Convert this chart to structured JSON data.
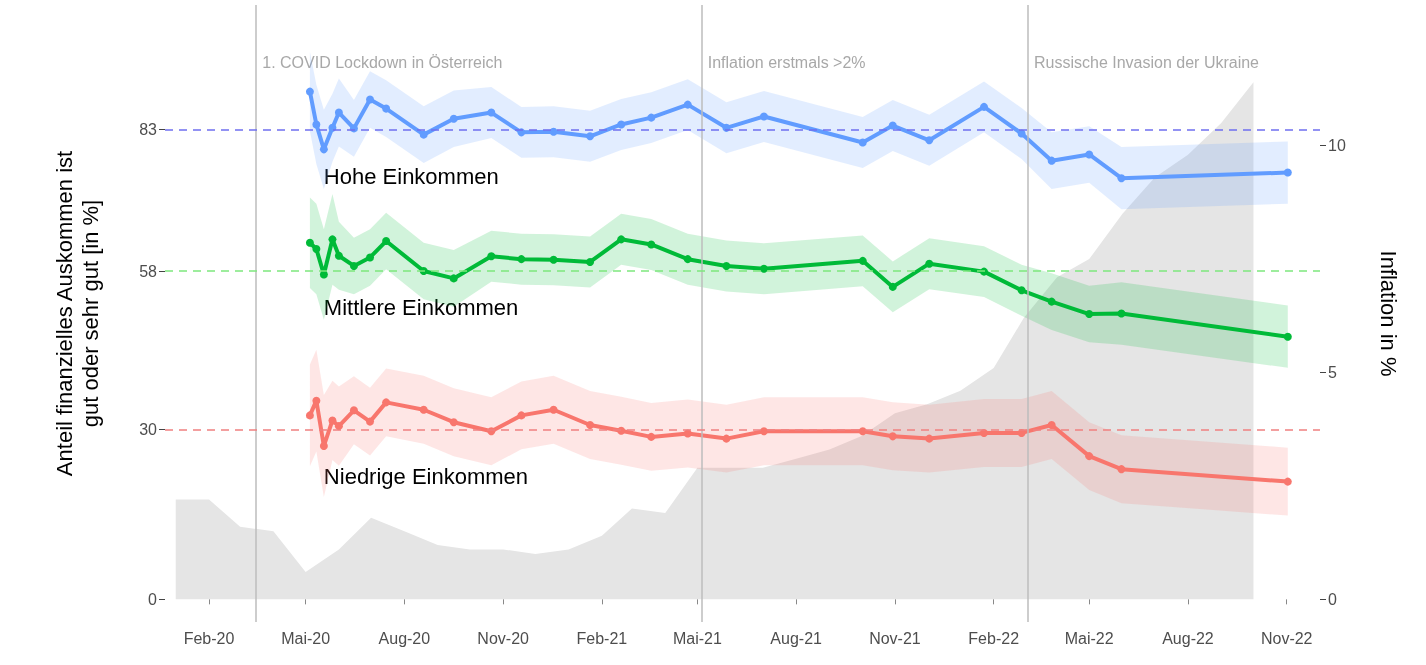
{
  "chart_data": {
    "type": "line",
    "ylabel": "Anteil finanzielles Auskommen ist\ngut oder sehr gut [in %]",
    "y2label": "Inflation in %",
    "x": [
      "2020-05-05",
      "2020-05-11",
      "2020-05-18",
      "2020-05-26",
      "2020-06-01",
      "2020-06-15",
      "2020-06-30",
      "2020-07-15",
      "2020-08-19",
      "2020-09-16",
      "2020-10-21",
      "2020-11-18",
      "2020-12-18",
      "2021-01-21",
      "2021-02-19",
      "2021-03-19",
      "2021-04-22",
      "2021-05-28",
      "2021-07-02",
      "2021-10-02",
      "2021-10-30",
      "2021-12-03",
      "2022-01-23",
      "2022-02-27",
      "2022-03-27",
      "2022-05-01",
      "2022-05-31",
      "2022-11-02"
    ],
    "series": [
      {
        "type": "area",
        "axis": "y2",
        "color": "#e5e5e5",
        "marker": "none",
        "x": [
          "2020-01",
          "2020-02",
          "2020-03",
          "2020-04",
          "2020-05",
          "2020-06",
          "2020-07",
          "2020-08",
          "2020-09",
          "2020-10",
          "2020-11",
          "2020-12",
          "2021-01",
          "2021-02",
          "2021-03",
          "2021-04",
          "2021-05",
          "2021-06",
          "2021-07",
          "2021-08",
          "2021-09",
          "2021-10",
          "2021-11",
          "2021-12",
          "2022-01",
          "2022-02",
          "2022-03",
          "2022-04",
          "2022-05",
          "2022-06",
          "2022-07",
          "2022-08",
          "2022-09",
          "2022-10"
        ],
        "values": [
          2.2,
          2.2,
          1.6,
          1.5,
          0.6,
          1.1,
          1.8,
          1.5,
          1.2,
          1.1,
          1.1,
          1.0,
          1.1,
          1.4,
          2.0,
          1.9,
          2.9,
          2.9,
          2.9,
          3.1,
          3.3,
          3.6,
          4.1,
          4.3,
          4.6,
          5.1,
          6.2,
          7.1,
          7.5,
          8.5,
          9.3,
          9.8,
          10.5,
          11.4
        ]
      },
      {
        "name": "Hohe Einkommen",
        "color": "#619cff",
        "values": [
          89.7,
          83.9,
          79.5,
          83.3,
          86.0,
          83.2,
          88.3,
          86.7,
          82.1,
          84.9,
          86.0,
          82.5,
          82.6,
          81.8,
          83.9,
          85.1,
          87.4,
          83.3,
          85.3,
          80.7,
          83.7,
          81.1,
          87.0,
          82.3,
          77.5,
          78.6,
          74.4,
          75.4
        ],
        "upper": [
          96.7,
          90.9,
          86.5,
          89.3,
          92.0,
          88.2,
          93.3,
          91.7,
          87.1,
          89.9,
          90.5,
          87.0,
          87.1,
          86.3,
          88.4,
          89.6,
          91.9,
          87.8,
          89.8,
          85.2,
          88.2,
          85.6,
          91.5,
          86.8,
          82.5,
          83.6,
          79.9,
          80.9
        ],
        "lower": [
          82.7,
          76.9,
          72.5,
          77.3,
          80.0,
          78.2,
          83.3,
          81.7,
          77.1,
          79.9,
          81.5,
          78.0,
          78.1,
          77.3,
          79.4,
          80.6,
          82.9,
          78.8,
          80.8,
          76.2,
          79.2,
          76.6,
          82.5,
          77.8,
          72.5,
          73.6,
          68.9,
          69.9
        ]
      },
      {
        "name": "Mittlere Einkommen",
        "color": "#00ba38",
        "values": [
          63.0,
          61.9,
          57.4,
          63.6,
          60.7,
          58.9,
          60.4,
          63.3,
          58.0,
          56.7,
          60.6,
          60.1,
          60.0,
          59.6,
          63.6,
          62.7,
          60.1,
          58.9,
          58.4,
          59.8,
          55.2,
          59.3,
          57.9,
          54.6,
          52.6,
          50.4,
          50.5,
          46.4
        ],
        "upper": [
          71.0,
          69.9,
          65.4,
          71.6,
          66.7,
          63.9,
          65.4,
          68.3,
          63.0,
          61.7,
          65.1,
          64.6,
          64.5,
          64.1,
          68.1,
          67.2,
          64.6,
          63.4,
          62.9,
          64.3,
          59.7,
          63.8,
          62.4,
          59.1,
          57.6,
          55.4,
          56.0,
          51.9
        ],
        "lower": [
          55.0,
          53.9,
          49.4,
          55.6,
          54.7,
          53.9,
          55.4,
          58.3,
          53.0,
          51.7,
          56.1,
          55.6,
          55.5,
          55.1,
          59.1,
          58.2,
          55.6,
          54.4,
          53.9,
          55.3,
          50.7,
          54.8,
          53.4,
          50.1,
          47.6,
          45.4,
          45.0,
          40.9
        ]
      },
      {
        "name": "Niedrige Einkommen",
        "color": "#f8766d",
        "values": [
          32.5,
          35.1,
          27.1,
          31.6,
          30.6,
          33.4,
          31.4,
          34.8,
          33.5,
          31.3,
          29.7,
          32.5,
          33.5,
          30.8,
          29.8,
          28.7,
          29.3,
          28.4,
          29.7,
          29.7,
          28.8,
          28.4,
          29.4,
          29.4,
          30.8,
          25.3,
          23.0,
          20.8
        ],
        "upper": [
          41.5,
          44.1,
          36.1,
          38.6,
          37.6,
          39.4,
          37.4,
          40.8,
          39.5,
          37.3,
          35.7,
          38.5,
          39.5,
          36.8,
          35.8,
          34.7,
          35.3,
          34.4,
          35.7,
          35.7,
          34.8,
          34.4,
          35.4,
          35.4,
          36.8,
          31.3,
          29.0,
          26.8
        ],
        "lower": [
          23.5,
          26.1,
          18.1,
          24.6,
          23.6,
          27.4,
          25.4,
          28.8,
          27.5,
          25.3,
          23.7,
          26.5,
          27.5,
          24.8,
          23.8,
          22.7,
          23.3,
          22.4,
          23.7,
          23.7,
          22.8,
          22.4,
          23.4,
          23.4,
          24.8,
          19.3,
          17.0,
          14.8
        ]
      }
    ],
    "marker": "circle",
    "xlim": [
      "2019-12-22",
      "2022-12-02"
    ],
    "xticks": [
      {
        "value": "2020-02-01",
        "label": "Feb-20"
      },
      {
        "value": "2020-05-01",
        "label": "Mai-20"
      },
      {
        "value": "2020-08-01",
        "label": "Aug-20"
      },
      {
        "value": "2020-11-01",
        "label": "Nov-20"
      },
      {
        "value": "2021-02-01",
        "label": "Feb-21"
      },
      {
        "value": "2021-05-01",
        "label": "Mai-21"
      },
      {
        "value": "2021-08-01",
        "label": "Aug-21"
      },
      {
        "value": "2021-11-01",
        "label": "Nov-21"
      },
      {
        "value": "2022-02-01",
        "label": "Feb-22"
      },
      {
        "value": "2022-05-01",
        "label": "Mai-22"
      },
      {
        "value": "2022-08-01",
        "label": "Aug-22"
      },
      {
        "value": "2022-11-01",
        "label": "Nov-22"
      }
    ],
    "ylim": [
      -4,
      105
    ],
    "yticks": [
      0,
      30,
      58,
      83
    ],
    "y2lim": [
      -0.5,
      13.1
    ],
    "y2ticks": [
      0,
      5,
      10
    ],
    "ref_lines": [
      {
        "axis": "y",
        "value": 83,
        "color": "#6f6ff0",
        "line_style": "dashed"
      },
      {
        "axis": "y",
        "value": 58,
        "color": "#7de87d",
        "line_style": "dashed"
      },
      {
        "axis": "y",
        "value": 30,
        "color": "#f08080",
        "line_style": "dashed"
      },
      {
        "axis": "x",
        "value": "2020-03-16",
        "label": "1. COVID Lockdown in Österreich",
        "color": "#bdbdbd",
        "line_style": "solid"
      },
      {
        "axis": "x",
        "value": "2021-05-05",
        "label": "Inflation erstmals >2%",
        "color": "#bdbdbd",
        "line_style": "solid"
      },
      {
        "axis": "x",
        "value": "2022-03-05",
        "label": "Russische Invasion der Ukraine",
        "color": "#bdbdbd",
        "line_style": "solid"
      }
    ]
  }
}
